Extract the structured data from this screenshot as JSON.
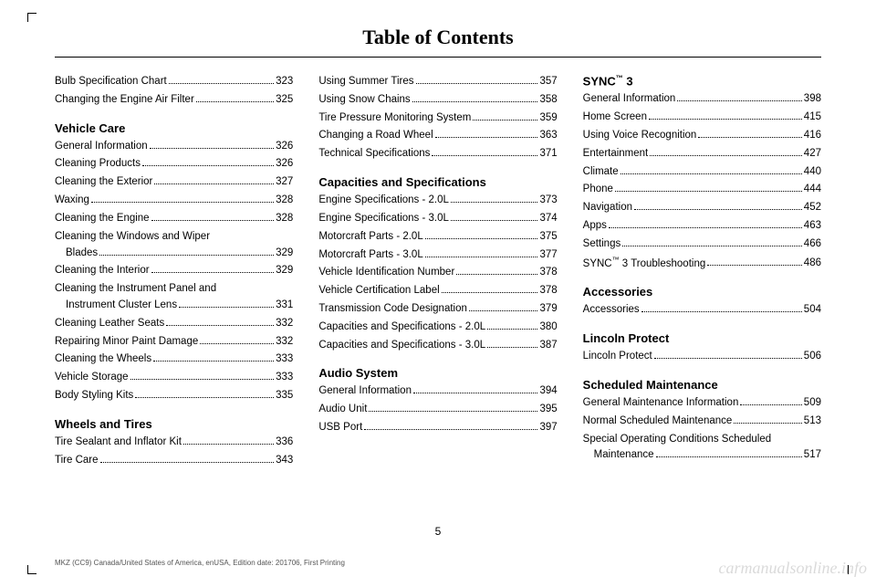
{
  "title": "Table of Contents",
  "page_number": "5",
  "footer_left": "MKZ (CC9) Canada/United States of America, enUSA, Edition date: 201706, First Printing",
  "watermark": "carmanualsonline.info",
  "columns": [
    {
      "groups": [
        {
          "heading": null,
          "entries": [
            {
              "label": "Bulb Specification Chart",
              "page": "323"
            },
            {
              "label": "Changing the Engine Air Filter",
              "page": "325"
            }
          ]
        },
        {
          "heading": "Vehicle Care",
          "entries": [
            {
              "label": "General Information",
              "page": "326"
            },
            {
              "label": "Cleaning Products",
              "page": "326"
            },
            {
              "label": "Cleaning the Exterior",
              "page": "327"
            },
            {
              "label": "Waxing",
              "page": "328"
            },
            {
              "label": "Cleaning the Engine",
              "page": "328"
            },
            {
              "label": "Cleaning the Windows and Wiper",
              "label2": "Blades",
              "page": "329"
            },
            {
              "label": "Cleaning the Interior",
              "page": "329"
            },
            {
              "label": "Cleaning the Instrument Panel and",
              "label2": "Instrument Cluster Lens",
              "page": "331"
            },
            {
              "label": "Cleaning Leather Seats",
              "page": "332"
            },
            {
              "label": "Repairing Minor Paint Damage",
              "page": "332"
            },
            {
              "label": "Cleaning the Wheels",
              "page": "333"
            },
            {
              "label": "Vehicle Storage",
              "page": "333"
            },
            {
              "label": "Body Styling Kits",
              "page": "335"
            }
          ]
        },
        {
          "heading": "Wheels and Tires",
          "entries": [
            {
              "label": "Tire Sealant and Inflator Kit",
              "page": "336"
            },
            {
              "label": "Tire Care",
              "page": "343"
            }
          ]
        }
      ]
    },
    {
      "groups": [
        {
          "heading": null,
          "entries": [
            {
              "label": "Using Summer Tires",
              "page": "357"
            },
            {
              "label": "Using Snow Chains",
              "page": "358"
            },
            {
              "label": "Tire Pressure Monitoring System",
              "page": "359"
            },
            {
              "label": "Changing a Road Wheel",
              "page": "363"
            },
            {
              "label": "Technical Specifications",
              "page": "371"
            }
          ]
        },
        {
          "heading": "Capacities and Specifications",
          "entries": [
            {
              "label": "Engine Specifications - 2.0L",
              "page": "373"
            },
            {
              "label": "Engine Specifications - 3.0L",
              "page": "374"
            },
            {
              "label": "Motorcraft Parts - 2.0L",
              "page": "375"
            },
            {
              "label": "Motorcraft Parts - 3.0L",
              "page": "377"
            },
            {
              "label": "Vehicle Identification Number",
              "page": "378"
            },
            {
              "label": "Vehicle Certification Label",
              "page": "378"
            },
            {
              "label": "Transmission Code Designation",
              "page": "379"
            },
            {
              "label": "Capacities and Specifications - 2.0L",
              "page": "380"
            },
            {
              "label": "Capacities and Specifications - 3.0L",
              "page": "387"
            }
          ]
        },
        {
          "heading": "Audio System",
          "entries": [
            {
              "label": "General Information",
              "page": "394"
            },
            {
              "label": "Audio Unit",
              "page": "395"
            },
            {
              "label": "USB Port",
              "page": "397"
            }
          ]
        }
      ]
    },
    {
      "groups": [
        {
          "heading": "SYNC™ 3",
          "entries": [
            {
              "label": "General Information",
              "page": "398"
            },
            {
              "label": "Home Screen",
              "page": "415"
            },
            {
              "label": "Using Voice Recognition",
              "page": "416"
            },
            {
              "label": "Entertainment",
              "page": "427"
            },
            {
              "label": "Climate",
              "page": "440"
            },
            {
              "label": "Phone",
              "page": "444"
            },
            {
              "label": "Navigation",
              "page": "452"
            },
            {
              "label": "Apps",
              "page": "463"
            },
            {
              "label": "Settings",
              "page": "466"
            },
            {
              "label": "SYNC™ 3 Troubleshooting",
              "page": "486"
            }
          ]
        },
        {
          "heading": "Accessories",
          "entries": [
            {
              "label": "Accessories",
              "page": "504"
            }
          ]
        },
        {
          "heading": "Lincoln Protect",
          "entries": [
            {
              "label": "Lincoln Protect",
              "page": "506"
            }
          ]
        },
        {
          "heading": "Scheduled Maintenance",
          "entries": [
            {
              "label": "General Maintenance Information",
              "page": "509"
            },
            {
              "label": "Normal Scheduled Maintenance",
              "page": "513"
            },
            {
              "label": "Special Operating Conditions Scheduled",
              "label2": "Maintenance",
              "page": "517"
            }
          ]
        }
      ]
    }
  ]
}
